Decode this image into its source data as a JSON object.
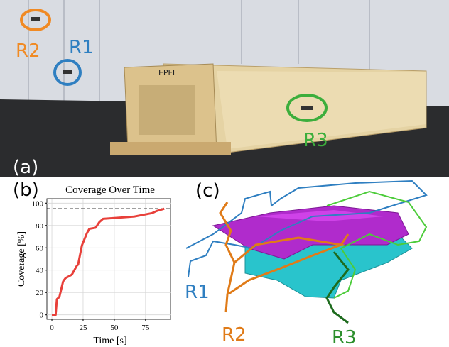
{
  "panels": {
    "a": {
      "label": "(a)",
      "robots": [
        "R1",
        "R2",
        "R3"
      ],
      "sign": "EPFL"
    },
    "c": {
      "label": "(c)",
      "robots": [
        "R1",
        "R2",
        "R3"
      ]
    }
  },
  "chart_data": {
    "type": "line",
    "panel_label": "(b)",
    "title": "Coverage Over Time",
    "x_label": "Time [s]",
    "y_label": "Coverage [%]",
    "x": [
      0,
      3,
      4,
      6,
      9,
      11,
      16,
      20,
      21,
      24,
      28,
      30,
      35,
      38,
      41,
      66,
      80,
      84,
      90
    ],
    "values": [
      0,
      0,
      14,
      16,
      30,
      33,
      36,
      44,
      45,
      62,
      73,
      77,
      78,
      83,
      86,
      88,
      91,
      93,
      95
    ],
    "color": "#e8403a",
    "hline": 95,
    "xlim": [
      -4,
      95
    ],
    "ylim": [
      -4,
      104
    ],
    "xticks": [
      0,
      25,
      50,
      75
    ],
    "yticks": [
      0,
      20,
      40,
      60,
      80,
      100
    ],
    "grid": true
  }
}
